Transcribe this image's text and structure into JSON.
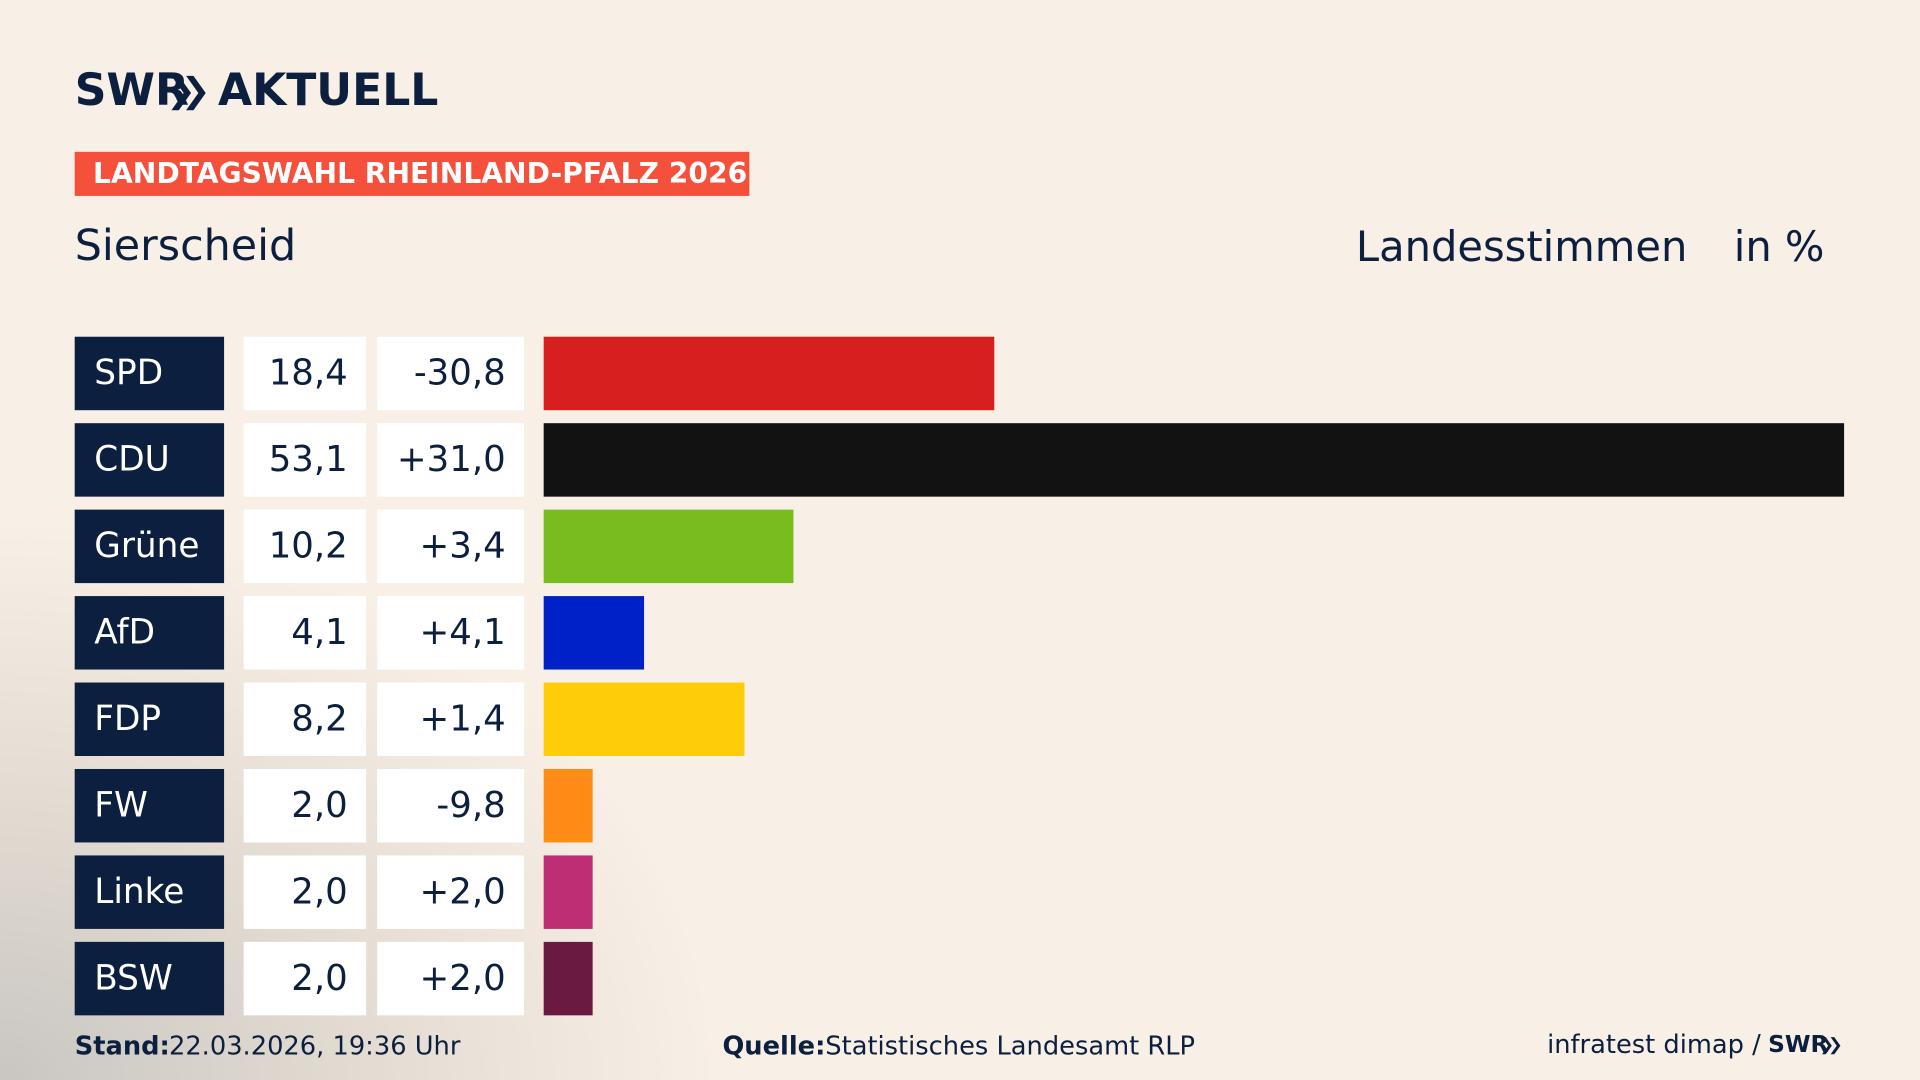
{
  "header": {
    "brand": "SWR",
    "brand_section": "AKTUELL"
  },
  "chart_data": {
    "type": "bar",
    "title": "LANDTAGSWAHL RHEINLAND-PFALZ 2026",
    "subtitle": "Sierscheid",
    "value_axis_label": "Landesstimmen",
    "unit": "in %",
    "categories": [
      "SPD",
      "CDU",
      "Grüne",
      "AfD",
      "FDP",
      "FW",
      "Linke",
      "BSW"
    ],
    "values": [
      18.4,
      53.1,
      10.2,
      4.1,
      8.2,
      2.0,
      2.0,
      2.0
    ],
    "value_labels": [
      "18,4",
      "53,1",
      "10,2",
      "4,1",
      "8,2",
      "2,0",
      "2,0",
      "2,0"
    ],
    "changes": [
      "-30,8",
      "+31,0",
      "+3,4",
      "+4,1",
      "+1,4",
      "-9,8",
      "+2,0",
      "+2,0"
    ],
    "colors": [
      "#d71f1f",
      "#121212",
      "#78bc1e",
      "#0021c8",
      "#ffcc0a",
      "#ff8c17",
      "#bd2e74",
      "#6a1a41"
    ],
    "xlim": [
      0,
      53.1
    ]
  },
  "footer": {
    "stand_label": "Stand:",
    "stand": "22.03.2026, 19:36 Uhr",
    "source_label": "Quelle:",
    "source": "Statistisches Landesamt RLP",
    "credit": "infratest dimap /",
    "brand": "SWR"
  }
}
